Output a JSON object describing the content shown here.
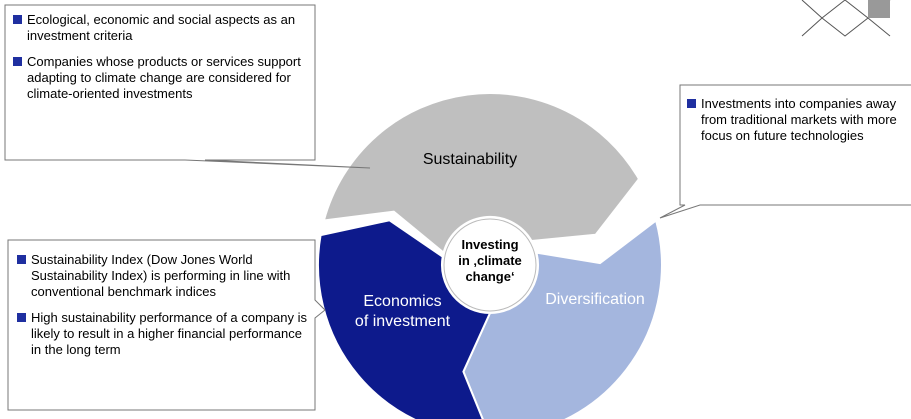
{
  "cycle": {
    "center": [
      "Investing",
      "in ‚climate",
      "change‘"
    ],
    "segments": [
      {
        "label": [
          "Sustainability"
        ]
      },
      {
        "label": [
          "Economics",
          "of investment"
        ]
      },
      {
        "label": [
          "Diversification"
        ]
      }
    ]
  },
  "callouts": [
    {
      "bullets": [
        "Ecological, economic and social aspects as an investment criteria",
        "Companies whose products or services support adapting to climate change are considered for climate-oriented investments"
      ]
    },
    {
      "bullets": [
        "Investments into companies away from traditional markets with more focus on future technologies"
      ]
    },
    {
      "bullets": [
        "Sustainability Index (Dow Jones World Sustainability Index) is performing in line with conventional benchmark indices",
        "High sustainability performance of a company is likely to result in a higher financial performance in the long term"
      ]
    }
  ]
}
